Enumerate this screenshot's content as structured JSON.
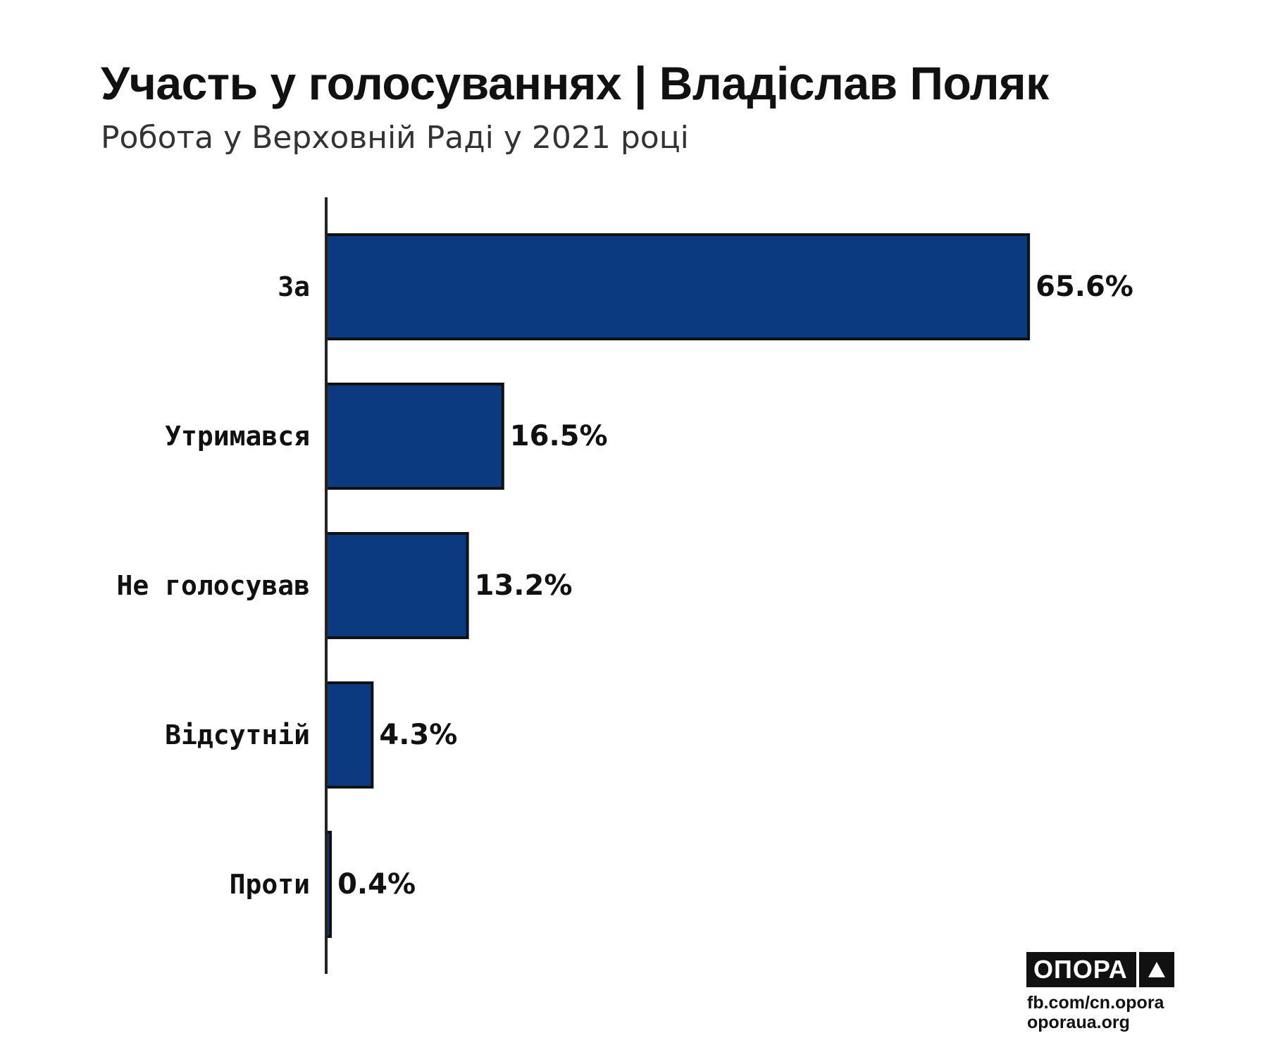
{
  "chart_data": {
    "type": "bar",
    "orientation": "horizontal",
    "title": "Участь у голосуваннях | Владіслав Поляк",
    "subtitle": "Робота у Верховній Раді у 2021 році",
    "categories": [
      "За",
      "Утримався",
      "Не голосував",
      "Відсутній",
      "Проти"
    ],
    "values": [
      65.6,
      16.5,
      13.2,
      4.3,
      0.4
    ],
    "value_labels": [
      "65.6%",
      "16.5%",
      "13.2%",
      "4.3%",
      "0.4%"
    ],
    "unit": "%",
    "bar_color": "#0b3a80",
    "grid": false,
    "legend": "none"
  },
  "branding": {
    "logo_text": "ОПОРА",
    "logo_icon": "triangle-icon",
    "links": [
      "fb.com/cn.opora",
      "oporaua.org"
    ]
  }
}
